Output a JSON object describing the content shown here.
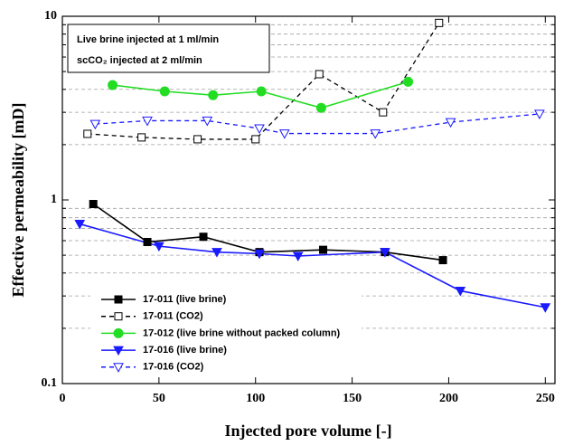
{
  "chart_data": {
    "type": "line",
    "xlabel": "Injected pore volume [-]",
    "ylabel": "Effective permeability [mD]",
    "annotations": [
      "Live brine injected at 1 ml/min",
      "scCO₂ injected at 2 ml/min"
    ],
    "xlim": [
      0,
      255
    ],
    "xticks": [
      0,
      50,
      100,
      150,
      200,
      250
    ],
    "ylim": [
      0.1,
      10
    ],
    "log_y": true,
    "yticks": [
      0.1,
      1,
      10
    ],
    "minor_yticks": [
      0.2,
      0.3,
      0.4,
      0.5,
      0.6,
      0.7,
      0.8,
      0.9,
      2,
      3,
      4,
      5,
      6,
      7,
      8,
      9
    ],
    "grid": true,
    "legend": "lower left",
    "series": [
      {
        "name": "17-011 (live brine)",
        "color": "#000000",
        "marker": "square",
        "filled": true,
        "dashed": false,
        "x": [
          16,
          44,
          73,
          102,
          135,
          167,
          197
        ],
        "values": [
          0.95,
          0.59,
          0.63,
          0.52,
          0.535,
          0.52,
          0.47
        ]
      },
      {
        "name": "17-011 (CO2)",
        "color": "#000000",
        "marker": "square",
        "filled": false,
        "dashed": true,
        "x": [
          13,
          41,
          70,
          100,
          133,
          166,
          195
        ],
        "values": [
          2.29,
          2.19,
          2.14,
          2.14,
          4.84,
          3.0,
          9.2
        ]
      },
      {
        "name": "17-012 (live brine without packed column)",
        "color": "#22dd22",
        "marker": "circle",
        "filled": true,
        "dashed": false,
        "x": [
          26,
          53,
          78,
          103,
          134,
          179
        ],
        "values": [
          4.22,
          3.9,
          3.72,
          3.9,
          3.17,
          4.4
        ]
      },
      {
        "name": "17-016 (live brine)",
        "color": "#1a1aff",
        "marker": "triangle-down",
        "filled": true,
        "dashed": false,
        "x": [
          9,
          50,
          80,
          102,
          122,
          167,
          206,
          250
        ],
        "values": [
          0.74,
          0.56,
          0.52,
          0.51,
          0.495,
          0.52,
          0.32,
          0.26
        ]
      },
      {
        "name": "17-016 (CO2)",
        "color": "#1a1aff",
        "marker": "triangle-down",
        "filled": false,
        "dashed": true,
        "x": [
          17,
          44,
          75,
          102,
          115,
          162,
          201,
          247
        ],
        "values": [
          2.59,
          2.7,
          2.7,
          2.45,
          2.3,
          2.3,
          2.65,
          2.94
        ]
      }
    ]
  }
}
